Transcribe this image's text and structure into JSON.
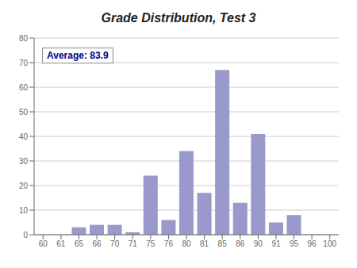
{
  "chart_data": {
    "type": "bar",
    "title": "Grade Distribution, Test 3",
    "annotation": "Average: 83.9",
    "categories": [
      "60",
      "61",
      "65",
      "66",
      "70",
      "71",
      "75",
      "76",
      "80",
      "81",
      "85",
      "86",
      "90",
      "91",
      "95",
      "96",
      "100"
    ],
    "values": [
      0,
      0,
      3,
      4,
      4,
      1,
      24,
      6,
      34,
      17,
      67,
      13,
      41,
      5,
      8,
      0,
      0
    ],
    "color": "#9999CC",
    "ylim": [
      0,
      80
    ],
    "yticks": [
      0,
      10,
      20,
      30,
      40,
      50,
      60,
      70,
      80
    ],
    "grid": true
  }
}
